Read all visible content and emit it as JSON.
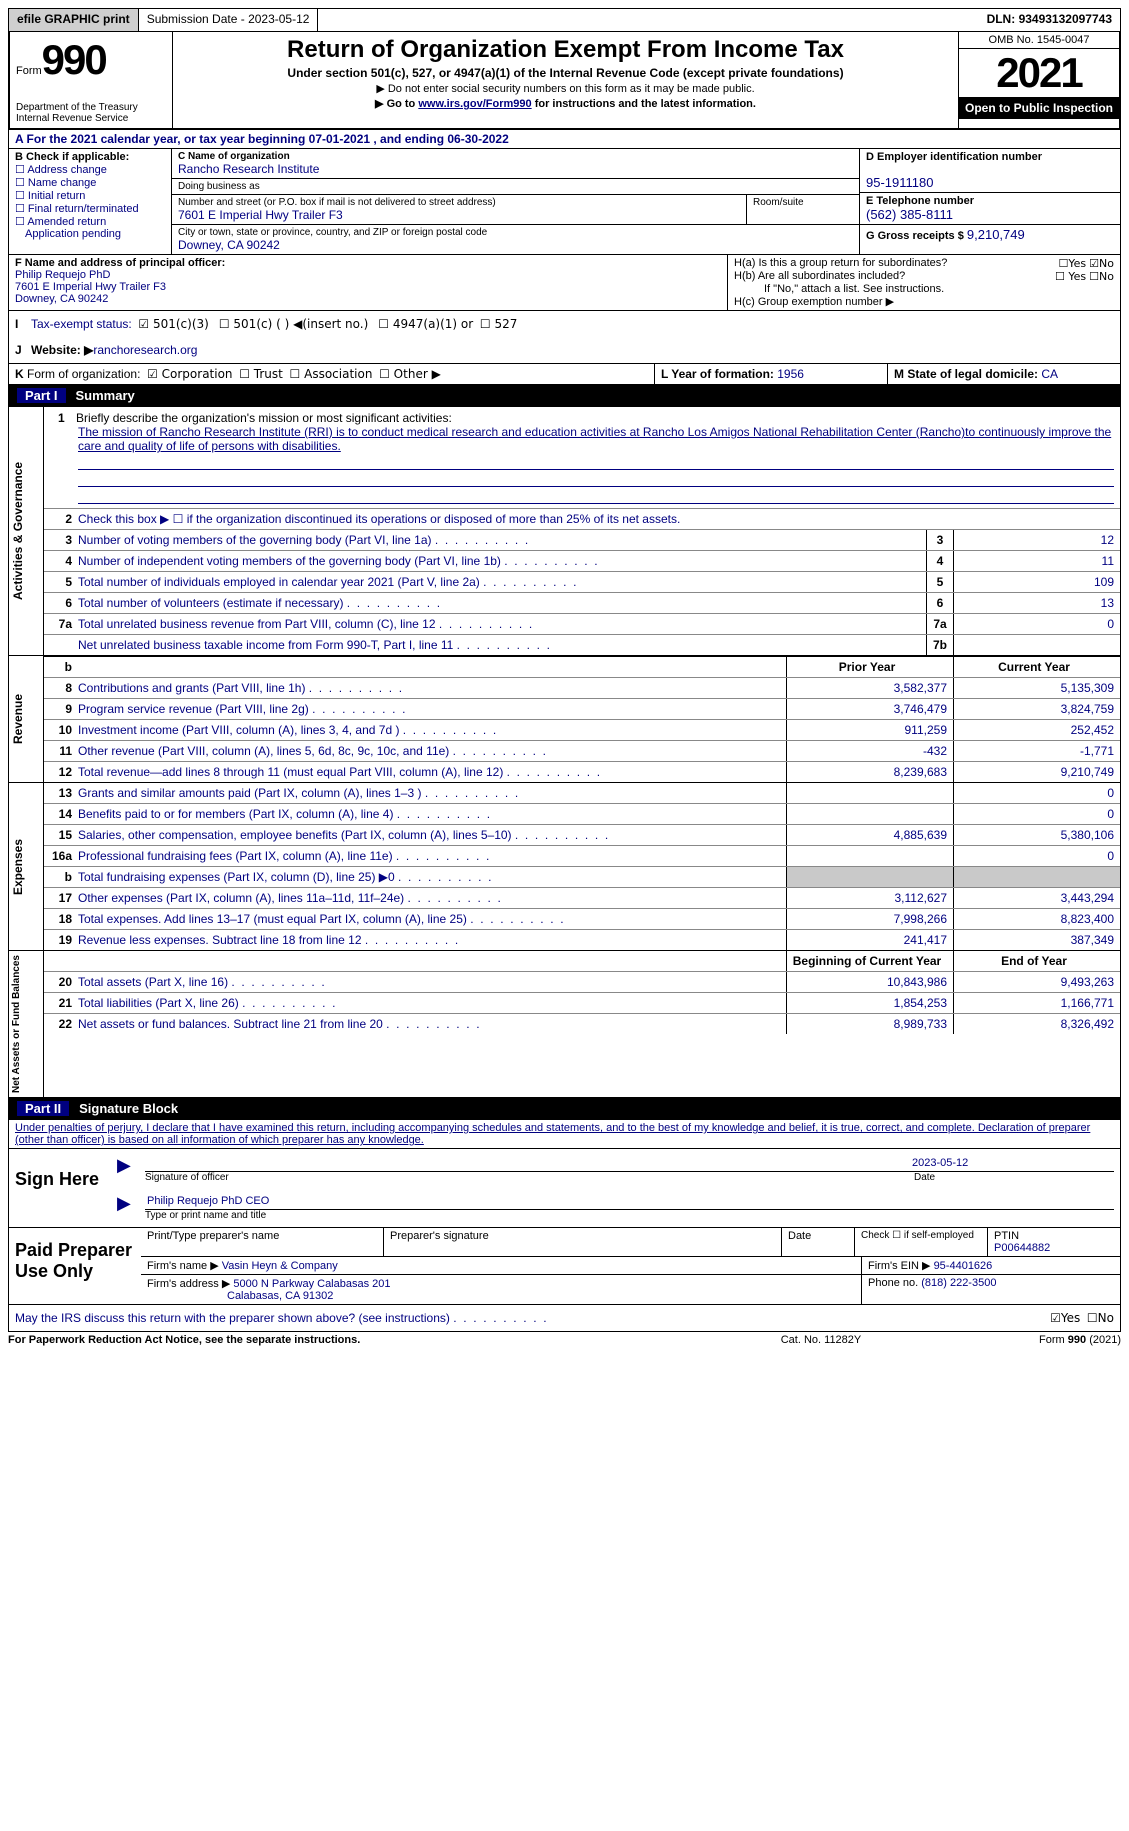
{
  "top": {
    "efile": "efile GRAPHIC print",
    "subdate_lbl": "Submission Date - ",
    "subdate": "2023-05-12",
    "dln_lbl": "DLN: ",
    "dln": "93493132097743"
  },
  "header": {
    "form_word": "Form",
    "form_num": "990",
    "dept": "Department of the Treasury\nInternal Revenue Service",
    "title": "Return of Organization Exempt From Income Tax",
    "sub1": "Under section 501(c), 527, or 4947(a)(1) of the Internal Revenue Code (except private foundations)",
    "sub2": "▶ Do not enter social security numbers on this form as it may be made public.",
    "sub3_pre": "▶ Go to ",
    "sub3_link": "www.irs.gov/Form990",
    "sub3_post": " for instructions and the latest information.",
    "omb": "OMB No. 1545-0047",
    "year": "2021",
    "open": "Open to Public Inspection"
  },
  "rowA": "A For the 2021 calendar year, or tax year beginning 07-01-2021    , and ending 06-30-2022",
  "colB": {
    "hdr": "B Check if applicable:",
    "items": [
      "Address change",
      "Name change",
      "Initial return",
      "Final return/terminated",
      "Amended return",
      "Application pending"
    ]
  },
  "colC": {
    "name_lbl": "C Name of organization",
    "name": "Rancho Research Institute",
    "dba_lbl": "Doing business as",
    "dba": "",
    "street_lbl": "Number and street (or P.O. box if mail is not delivered to street address)",
    "room_lbl": "Room/suite",
    "street": "7601 E Imperial Hwy Trailer F3",
    "city_lbl": "City or town, state or province, country, and ZIP or foreign postal code",
    "city": "Downey, CA  90242"
  },
  "colD": {
    "ein_lbl": "D Employer identification number",
    "ein": "95-1911180",
    "tel_lbl": "E Telephone number",
    "tel": "(562) 385-8111",
    "gross_lbl": "G Gross receipts $ ",
    "gross": "9,210,749"
  },
  "rowF": {
    "lbl": "F  Name and address of principal officer:",
    "name": "Philip Requejo PhD",
    "addr1": "7601 E Imperial Hwy Trailer F3",
    "addr2": "Downey, CA  90242"
  },
  "rowH": {
    "ha": "H(a)  Is this a group return for subordinates?",
    "ha_yes": "☐Yes",
    "ha_no": "☑No",
    "hb": "H(b)  Are all subordinates included?",
    "hb_yes": "☐ Yes",
    "hb_no": "☐No",
    "hb_note": "If \"No,\" attach a list. See instructions.",
    "hc": "H(c)  Group exemption number ▶"
  },
  "rowI": {
    "lbl": "I",
    "txt": "Tax-exempt status:",
    "c3": "☑  501(c)(3)",
    "c": "☐   501(c) (  ) ◀(insert no.)",
    "a": "☐   4947(a)(1) or",
    "s": "☐  527"
  },
  "rowJ": {
    "lbl": "J",
    "txt": "Website: ▶ ",
    "val": "ranchoresearch.org"
  },
  "rowK": {
    "lbl": "K",
    "txt": "Form of organization:",
    "corp": "☑  Corporation",
    "trust": "☐  Trust",
    "assoc": "☐  Association",
    "other": "☐  Other ▶"
  },
  "rowL": {
    "txt": "L Year of formation: ",
    "val": "1956"
  },
  "rowM": {
    "txt": "M State of legal domicile: ",
    "val": "CA"
  },
  "partI": {
    "num": "Part I",
    "title": "Summary"
  },
  "sideA": "Activities & Governance",
  "sideR": "Revenue",
  "sideE": "Expenses",
  "sideN": "Net Assets or Fund Balances",
  "mission": {
    "n": "1",
    "lbl": "Briefly describe the organization's mission or most significant activities:",
    "txt": "The mission of Rancho Research Institute (RRI) is to conduct medical research and education activities at Rancho Los Amigos National Rehabilitation Center (Rancho)to continuously improve the care and quality of life of persons with disabilities."
  },
  "line2": {
    "n": "2",
    "d": "Check this box ▶ ☐  if the organization discontinued its operations or disposed of more than 25% of its net assets."
  },
  "lines_ag": [
    {
      "n": "3",
      "d": "Number of voting members of the governing body (Part VI, line 1a)",
      "box": "3",
      "v": "12"
    },
    {
      "n": "4",
      "d": "Number of independent voting members of the governing body (Part VI, line 1b)",
      "box": "4",
      "v": "11"
    },
    {
      "n": "5",
      "d": "Total number of individuals employed in calendar year 2021 (Part V, line 2a)",
      "box": "5",
      "v": "109"
    },
    {
      "n": "6",
      "d": "Total number of volunteers (estimate if necessary)",
      "box": "6",
      "v": "13"
    },
    {
      "n": "7a",
      "d": "Total unrelated business revenue from Part VIII, column (C), line 12",
      "box": "7a",
      "v": "0"
    },
    {
      "n": "",
      "d": "Net unrelated business taxable income from Form 990-T, Part I, line 11",
      "box": "7b",
      "v": ""
    }
  ],
  "hdr_prior": "Prior Year",
  "hdr_curr": "Current Year",
  "lines_rev": [
    {
      "n": "8",
      "d": "Contributions and grants (Part VIII, line 1h)",
      "p": "3,582,377",
      "v": "5,135,309"
    },
    {
      "n": "9",
      "d": "Program service revenue (Part VIII, line 2g)",
      "p": "3,746,479",
      "v": "3,824,759"
    },
    {
      "n": "10",
      "d": "Investment income (Part VIII, column (A), lines 3, 4, and 7d )",
      "p": "911,259",
      "v": "252,452"
    },
    {
      "n": "11",
      "d": "Other revenue (Part VIII, column (A), lines 5, 6d, 8c, 9c, 10c, and 11e)",
      "p": "-432",
      "v": "-1,771"
    },
    {
      "n": "12",
      "d": "Total revenue—add lines 8 through 11 (must equal Part VIII, column (A), line 12)",
      "p": "8,239,683",
      "v": "9,210,749"
    }
  ],
  "lines_exp": [
    {
      "n": "13",
      "d": "Grants and similar amounts paid (Part IX, column (A), lines 1–3 )",
      "p": "",
      "v": "0"
    },
    {
      "n": "14",
      "d": "Benefits paid to or for members (Part IX, column (A), line 4)",
      "p": "",
      "v": "0"
    },
    {
      "n": "15",
      "d": "Salaries, other compensation, employee benefits (Part IX, column (A), lines 5–10)",
      "p": "4,885,639",
      "v": "5,380,106"
    },
    {
      "n": "16a",
      "d": "Professional fundraising fees (Part IX, column (A), line 11e)",
      "p": "",
      "v": "0"
    },
    {
      "n": "b",
      "d": "Total fundraising expenses (Part IX, column (D), line 25) ▶0",
      "p": "GRAY",
      "v": "GRAY"
    },
    {
      "n": "17",
      "d": "Other expenses (Part IX, column (A), lines 11a–11d, 11f–24e)",
      "p": "3,112,627",
      "v": "3,443,294"
    },
    {
      "n": "18",
      "d": "Total expenses. Add lines 13–17 (must equal Part IX, column (A), line 25)",
      "p": "7,998,266",
      "v": "8,823,400"
    },
    {
      "n": "19",
      "d": "Revenue less expenses. Subtract line 18 from line 12",
      "p": "241,417",
      "v": "387,349"
    }
  ],
  "hdr_beg": "Beginning of Current Year",
  "hdr_end": "End of Year",
  "lines_net": [
    {
      "n": "20",
      "d": "Total assets (Part X, line 16)",
      "p": "10,843,986",
      "v": "9,493,263"
    },
    {
      "n": "21",
      "d": "Total liabilities (Part X, line 26)",
      "p": "1,854,253",
      "v": "1,166,771"
    },
    {
      "n": "22",
      "d": "Net assets or fund balances. Subtract line 21 from line 20",
      "p": "8,989,733",
      "v": "8,326,492"
    }
  ],
  "partII": {
    "num": "Part II",
    "title": "Signature Block"
  },
  "perjury": "Under penalties of perjury, I declare that I have examined this return, including accompanying schedules and statements, and to the best of my knowledge and belief, it is true, correct, and complete. Declaration of preparer (other than officer) is based on all information of which preparer has any knowledge.",
  "sign": {
    "here": "Sign Here",
    "date": "2023-05-12",
    "sig_lbl": "Signature of officer",
    "date_lbl": "Date",
    "name": "Philip Requejo PhD CEO",
    "name_lbl": "Type or print name and title"
  },
  "prep": {
    "title": "Paid Preparer Use Only",
    "r1": {
      "a": "Print/Type preparer's name",
      "b": "Preparer's signature",
      "c": "Date",
      "d": "Check ☐  if self-employed",
      "e_lbl": "PTIN",
      "e": "P00644882"
    },
    "r2": {
      "a": "Firm's name    ▶ ",
      "av": "Vasin Heyn & Company",
      "b": "Firm's EIN ▶ ",
      "bv": "95-4401626"
    },
    "r3": {
      "a": "Firm's address ▶",
      "av1": "5000 N Parkway Calabasas 201",
      "av2": "Calabasas, CA  91302",
      "b": "Phone no. ",
      "bv": "(818) 222-3500"
    }
  },
  "discuss": {
    "txt": "May the IRS discuss this return with the preparer shown above? (see instructions)",
    "yes": "☑Yes",
    "no": "☐No"
  },
  "foot": {
    "a": "For Paperwork Reduction Act Notice, see the separate instructions.",
    "b": "Cat. No. 11282Y",
    "c": "Form 990 (2021)"
  }
}
